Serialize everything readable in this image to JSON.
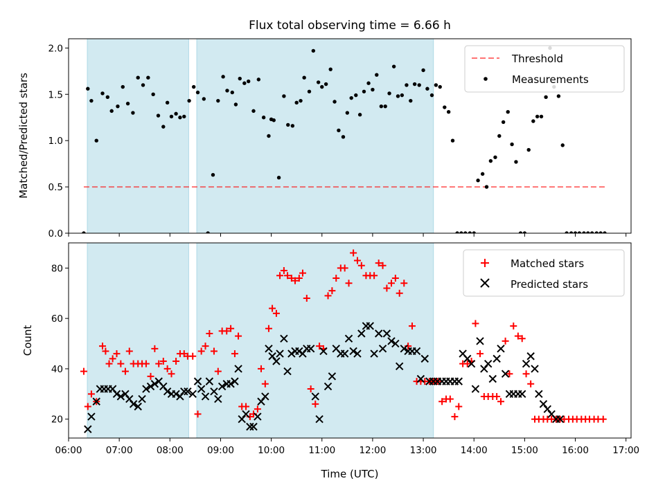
{
  "colors": {
    "shade": "#add8e6",
    "threshold": "#ff0000",
    "measurement": "#000000",
    "matched": "#ff0000",
    "predicted": "#000000"
  },
  "chart_data": [
    {
      "type": "scatter",
      "title": "Flux total observing time = 6.66 h",
      "ylabel": "Matched/Predicted stars",
      "xlim": [
        6.0,
        17.1
      ],
      "ylim": [
        0.0,
        2.1
      ],
      "yticks": [
        0.0,
        0.5,
        1.0,
        1.5,
        2.0
      ],
      "ytick_labels": [
        "0.0",
        "0.5",
        "1.0",
        "1.5",
        "2.0"
      ],
      "shaded_ranges": [
        [
          6.37,
          8.37
        ],
        [
          8.53,
          13.2
        ]
      ],
      "legend": {
        "placement": "top-right",
        "entries": [
          "Threshold",
          "Measurements"
        ]
      },
      "threshold": {
        "name": "Threshold",
        "y": 0.5,
        "x_range": [
          6.3,
          16.6
        ]
      },
      "series": [
        {
          "name": "Measurements",
          "x": [
            6.3,
            6.38,
            6.45,
            6.55,
            6.67,
            6.77,
            6.85,
            6.97,
            7.07,
            7.17,
            7.27,
            7.37,
            7.47,
            7.57,
            7.67,
            7.77,
            7.87,
            7.95,
            8.03,
            8.12,
            8.2,
            8.28,
            8.38,
            8.47,
            8.55,
            8.67,
            8.75,
            8.85,
            8.95,
            9.05,
            9.13,
            9.23,
            9.3,
            9.38,
            9.47,
            9.55,
            9.65,
            9.75,
            9.85,
            9.95,
            10.0,
            10.05,
            10.15,
            10.25,
            10.33,
            10.42,
            10.5,
            10.58,
            10.65,
            10.75,
            10.83,
            10.93,
            11.0,
            11.08,
            11.17,
            11.25,
            11.33,
            11.42,
            11.5,
            11.58,
            11.67,
            11.75,
            11.83,
            11.92,
            12.0,
            12.08,
            12.17,
            12.25,
            12.33,
            12.42,
            12.5,
            12.58,
            12.67,
            12.75,
            12.83,
            12.92,
            13.0,
            13.08,
            13.17,
            13.25,
            13.33,
            13.42,
            13.5,
            13.58,
            13.67,
            13.75,
            13.83,
            13.92,
            14.0,
            14.08,
            14.17,
            14.25,
            14.33,
            14.42,
            14.5,
            14.58,
            14.67,
            14.75,
            14.83,
            14.92,
            15.0,
            15.08,
            15.17,
            15.25,
            15.33,
            15.42,
            15.5,
            15.58,
            15.67,
            15.75,
            15.83,
            15.92,
            16.0,
            16.08,
            16.17,
            16.25,
            16.33,
            16.42,
            16.5,
            16.58
          ],
          "values": [
            0.0,
            1.56,
            1.43,
            1.0,
            1.51,
            1.47,
            1.32,
            1.37,
            1.58,
            1.4,
            1.3,
            1.68,
            1.6,
            1.68,
            1.5,
            1.27,
            1.15,
            1.41,
            1.26,
            1.29,
            1.25,
            1.26,
            1.43,
            1.58,
            1.52,
            1.45,
            0.0,
            0.63,
            1.43,
            1.69,
            1.54,
            1.52,
            1.39,
            1.67,
            1.62,
            1.64,
            1.32,
            1.66,
            1.25,
            1.05,
            1.23,
            1.22,
            0.6,
            1.48,
            1.17,
            1.16,
            1.41,
            1.43,
            1.68,
            1.53,
            1.97,
            1.63,
            1.58,
            1.61,
            1.77,
            1.42,
            1.11,
            1.04,
            1.3,
            1.46,
            1.49,
            1.28,
            1.53,
            1.62,
            1.55,
            1.71,
            1.37,
            1.37,
            1.51,
            1.8,
            1.48,
            1.49,
            1.6,
            1.43,
            1.61,
            1.6,
            1.76,
            1.56,
            1.49,
            1.6,
            1.58,
            1.36,
            1.31,
            1.0,
            0.0,
            0.0,
            0.0,
            0.0,
            0.0,
            0.57,
            0.64,
            0.5,
            0.78,
            0.82,
            1.05,
            1.2,
            1.31,
            0.96,
            0.77,
            0.0,
            0.0,
            0.9,
            1.21,
            1.26,
            1.26,
            1.47,
            2.0,
            1.58,
            1.48,
            0.95,
            0.0,
            0.0,
            0.0,
            0.0,
            0.0,
            0.0,
            0.0,
            0.0,
            0.0,
            0.0
          ]
        }
      ]
    },
    {
      "type": "scatter",
      "xlabel": "Time (UTC)",
      "ylabel": "Count",
      "xlim": [
        6.0,
        17.1
      ],
      "ylim": [
        12.5,
        90.0
      ],
      "xticks": [
        6,
        7,
        8,
        9,
        10,
        11,
        12,
        13,
        14,
        15,
        16,
        17
      ],
      "xtick_labels": [
        "06:00",
        "07:00",
        "08:00",
        "09:00",
        "10:00",
        "11:00",
        "12:00",
        "13:00",
        "14:00",
        "15:00",
        "16:00",
        "17:00"
      ],
      "yticks": [
        20,
        40,
        60,
        80
      ],
      "ytick_labels": [
        "20",
        "40",
        "60",
        "80"
      ],
      "shaded_ranges": [
        [
          6.37,
          8.37
        ],
        [
          8.53,
          13.2
        ]
      ],
      "legend": {
        "placement": "top-right",
        "entries": [
          "Matched stars",
          "Predicted stars"
        ]
      },
      "series": [
        {
          "name": "Matched stars",
          "marker": "plus",
          "x": [
            6.3,
            6.38,
            6.45,
            6.55,
            6.67,
            6.73,
            6.8,
            6.87,
            6.95,
            7.03,
            7.12,
            7.2,
            7.28,
            7.37,
            7.45,
            7.53,
            7.62,
            7.7,
            7.78,
            7.87,
            7.95,
            8.03,
            8.12,
            8.2,
            8.28,
            8.35,
            8.45,
            8.55,
            8.62,
            8.7,
            8.78,
            8.87,
            8.95,
            9.03,
            9.12,
            9.2,
            9.28,
            9.35,
            9.42,
            9.5,
            9.58,
            9.65,
            9.73,
            9.8,
            9.88,
            9.95,
            10.02,
            10.1,
            10.17,
            10.25,
            10.32,
            10.4,
            10.47,
            10.55,
            10.62,
            10.7,
            10.78,
            10.87,
            10.95,
            11.03,
            11.12,
            11.2,
            11.28,
            11.37,
            11.45,
            11.53,
            11.62,
            11.7,
            11.78,
            11.87,
            11.95,
            12.03,
            12.12,
            12.2,
            12.28,
            12.37,
            12.45,
            12.53,
            12.62,
            12.7,
            12.78,
            12.87,
            12.95,
            13.03,
            13.12,
            13.2,
            13.28,
            13.37,
            13.45,
            13.53,
            13.62,
            13.7,
            13.78,
            13.87,
            13.95,
            14.03,
            14.12,
            14.2,
            14.28,
            14.37,
            14.45,
            14.53,
            14.62,
            14.7,
            14.78,
            14.87,
            14.95,
            15.03,
            15.12,
            15.2,
            15.28,
            15.37,
            15.45,
            15.53,
            15.62,
            15.7,
            15.78,
            15.87,
            15.95,
            16.03,
            16.12,
            16.2,
            16.28,
            16.37,
            16.45,
            16.55
          ],
          "values": [
            39,
            25,
            30,
            27,
            49,
            47,
            42,
            44,
            46,
            42,
            39,
            47,
            42,
            42,
            42,
            42,
            37,
            48,
            42,
            43,
            40,
            38,
            43,
            46,
            46,
            45,
            45,
            22,
            47,
            49,
            54,
            47,
            39,
            55,
            55,
            56,
            46,
            53,
            25,
            25,
            21,
            22,
            24,
            40,
            34,
            56,
            64,
            62,
            77,
            79,
            77,
            76,
            75,
            76,
            78,
            68,
            32,
            26,
            49,
            48,
            69,
            71,
            76,
            80,
            80,
            74,
            86,
            83,
            81,
            77,
            77,
            77,
            82,
            81,
            72,
            74,
            76,
            70,
            74,
            49,
            57,
            35,
            35,
            35,
            35,
            35,
            35,
            27,
            28,
            28,
            21,
            25,
            42,
            42,
            43,
            58,
            46,
            29,
            29,
            29,
            29,
            27,
            51,
            38,
            57,
            53,
            52,
            38,
            34,
            20,
            20,
            20,
            20,
            20,
            20,
            20,
            20,
            20,
            20,
            20,
            20,
            20,
            20,
            20,
            20,
            20
          ]
        },
        {
          "name": "Predicted stars",
          "marker": "x",
          "x": [
            6.38,
            6.45,
            6.55,
            6.62,
            6.7,
            6.78,
            6.87,
            6.95,
            7.03,
            7.12,
            7.2,
            7.28,
            7.37,
            7.45,
            7.53,
            7.62,
            7.7,
            7.78,
            7.87,
            7.95,
            8.03,
            8.12,
            8.2,
            8.28,
            8.35,
            8.45,
            8.55,
            8.62,
            8.7,
            8.78,
            8.87,
            8.95,
            9.03,
            9.12,
            9.2,
            9.28,
            9.35,
            9.42,
            9.5,
            9.58,
            9.65,
            9.73,
            9.8,
            9.88,
            9.95,
            10.02,
            10.1,
            10.17,
            10.25,
            10.32,
            10.4,
            10.47,
            10.55,
            10.62,
            10.7,
            10.78,
            10.87,
            10.95,
            11.03,
            11.12,
            11.2,
            11.28,
            11.37,
            11.45,
            11.53,
            11.62,
            11.7,
            11.78,
            11.87,
            11.95,
            12.03,
            12.12,
            12.2,
            12.28,
            12.37,
            12.45,
            12.53,
            12.62,
            12.7,
            12.78,
            12.87,
            12.95,
            13.03,
            13.12,
            13.2,
            13.28,
            13.37,
            13.45,
            13.53,
            13.62,
            13.7,
            13.78,
            13.87,
            13.95,
            14.03,
            14.12,
            14.2,
            14.28,
            14.37,
            14.45,
            14.53,
            14.62,
            14.7,
            14.78,
            14.87,
            14.95,
            15.03,
            15.12,
            15.2,
            15.28,
            15.37,
            15.45,
            15.53,
            15.62,
            15.7
          ],
          "values": [
            16,
            21,
            27,
            32,
            32,
            32,
            32,
            30,
            29,
            30,
            28,
            26,
            25,
            28,
            32,
            33,
            34,
            35,
            33,
            31,
            30,
            30,
            29,
            31,
            31,
            30,
            35,
            32,
            29,
            35,
            31,
            28,
            33,
            34,
            34,
            35,
            40,
            20,
            22,
            17,
            17,
            21,
            27,
            29,
            48,
            45,
            43,
            46,
            52,
            39,
            46,
            47,
            47,
            46,
            48,
            48,
            29,
            20,
            47,
            33,
            37,
            48,
            46,
            46,
            52,
            47,
            46,
            54,
            57,
            57,
            46,
            54,
            48,
            54,
            51,
            50,
            41,
            48,
            47,
            47,
            47,
            36,
            44,
            35,
            35,
            35,
            35,
            35,
            35,
            35,
            35,
            46,
            44,
            42,
            32,
            51,
            40,
            42,
            36,
            44,
            48,
            38,
            30,
            30,
            30,
            30,
            42,
            45,
            40,
            30,
            26,
            24,
            22,
            20,
            20
          ]
        }
      ]
    }
  ]
}
